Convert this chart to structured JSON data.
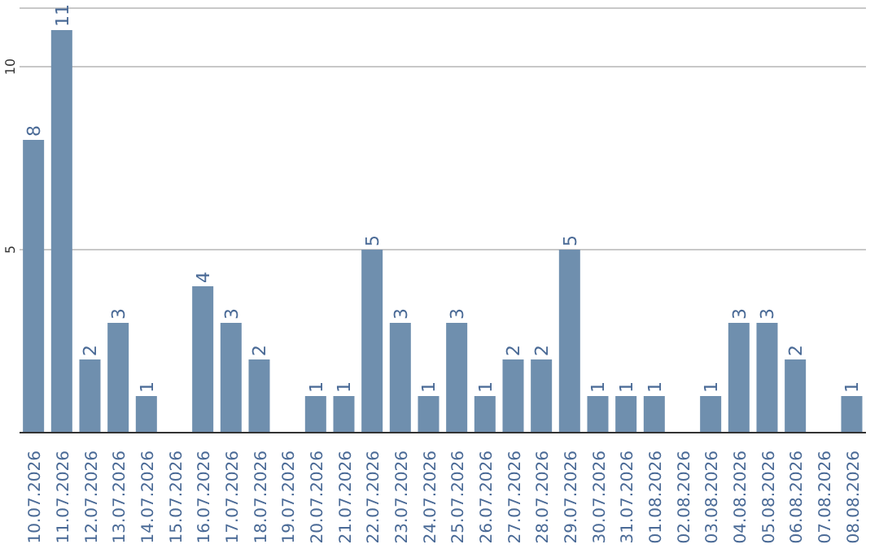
{
  "chart_data": {
    "type": "bar",
    "categories": [
      "10.07.2026",
      "11.07.2026",
      "12.07.2026",
      "13.07.2026",
      "14.07.2026",
      "15.07.2026",
      "16.07.2026",
      "17.07.2026",
      "18.07.2026",
      "19.07.2026",
      "20.07.2026",
      "21.07.2026",
      "22.07.2026",
      "23.07.2026",
      "24.07.2026",
      "25.07.2026",
      "26.07.2026",
      "27.07.2026",
      "28.07.2026",
      "29.07.2026",
      "30.07.2026",
      "31.07.2026",
      "01.08.2026",
      "02.08.2026",
      "03.08.2026",
      "04.08.2026",
      "05.08.2026",
      "06.08.2026",
      "07.08.2026",
      "08.08.2026"
    ],
    "values": [
      8,
      11,
      2,
      3,
      1,
      0,
      4,
      3,
      2,
      0,
      1,
      1,
      5,
      3,
      1,
      3,
      1,
      2,
      2,
      5,
      1,
      1,
      1,
      0,
      1,
      3,
      3,
      2,
      0,
      1
    ],
    "value_labels": [
      "8",
      "11",
      "2",
      "3",
      "1",
      null,
      "4",
      "3",
      "2",
      null,
      "1",
      "1",
      "5",
      "3",
      "1",
      "3",
      "1",
      "2",
      "2",
      "5",
      "1",
      "1",
      "1",
      null,
      "1",
      "3",
      "3",
      "2",
      null,
      "1"
    ],
    "color": "#6f8fae",
    "ylim": [
      0,
      11.6
    ],
    "yticks": [
      5,
      10
    ],
    "grid": "y"
  }
}
